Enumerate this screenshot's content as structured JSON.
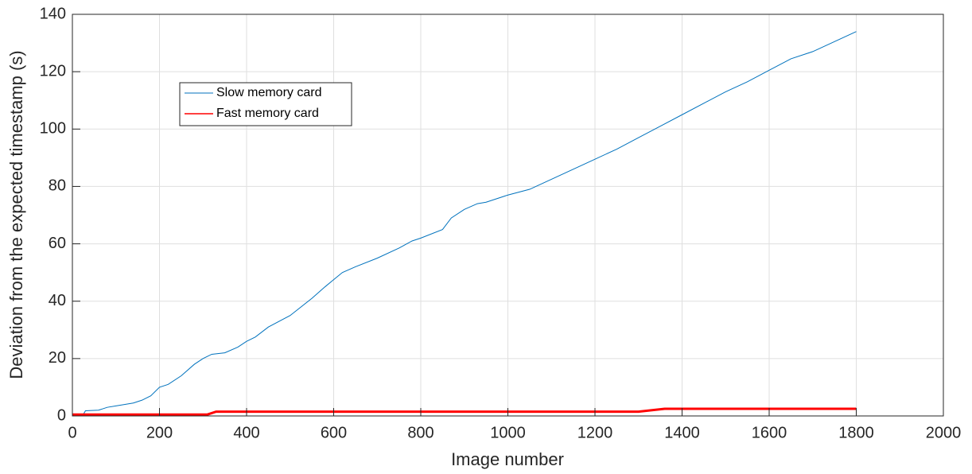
{
  "chart_data": {
    "type": "line",
    "xlabel": "Image number",
    "ylabel": "Deviation from the expected timestamp (s)",
    "xlim": [
      0,
      2000
    ],
    "xticks": [
      0,
      200,
      400,
      600,
      800,
      1000,
      1200,
      1400,
      1600,
      1800,
      2000
    ],
    "ylim": [
      0,
      140
    ],
    "yticks": [
      0,
      20,
      40,
      60,
      80,
      100,
      120,
      140
    ],
    "grid": true,
    "legend": "northwest",
    "series": [
      {
        "name": "Slow memory card",
        "color": "#0072bd",
        "width": 1,
        "x": [
          0,
          25,
          30,
          60,
          80,
          100,
          140,
          160,
          180,
          200,
          220,
          250,
          280,
          300,
          320,
          350,
          380,
          400,
          420,
          450,
          500,
          550,
          580,
          600,
          620,
          650,
          700,
          750,
          780,
          800,
          850,
          870,
          900,
          930,
          950,
          1000,
          1050,
          1100,
          1150,
          1200,
          1250,
          1300,
          1350,
          1400,
          1450,
          1500,
          1550,
          1600,
          1650,
          1700,
          1750,
          1800
        ],
        "values": [
          0.5,
          0.5,
          1.8,
          2,
          3,
          3.5,
          4.5,
          5.5,
          7,
          10,
          11,
          14,
          18,
          20,
          21.5,
          22,
          24,
          26,
          27.5,
          31,
          35,
          41,
          45,
          47.5,
          50,
          52,
          55,
          58.5,
          61,
          62,
          65,
          69,
          72,
          74,
          74.5,
          77,
          79,
          82.5,
          86,
          89.5,
          93,
          97,
          101,
          105,
          109,
          113,
          116.5,
          120.5,
          124.5,
          127,
          130.5,
          134
        ]
      },
      {
        "name": "Fast memory card",
        "color": "#ff0000",
        "width": 3,
        "x": [
          0,
          310,
          320,
          330,
          1300,
          1360,
          1800
        ],
        "values": [
          0.5,
          0.5,
          1,
          1.5,
          1.5,
          2.5,
          2.5
        ]
      }
    ]
  }
}
